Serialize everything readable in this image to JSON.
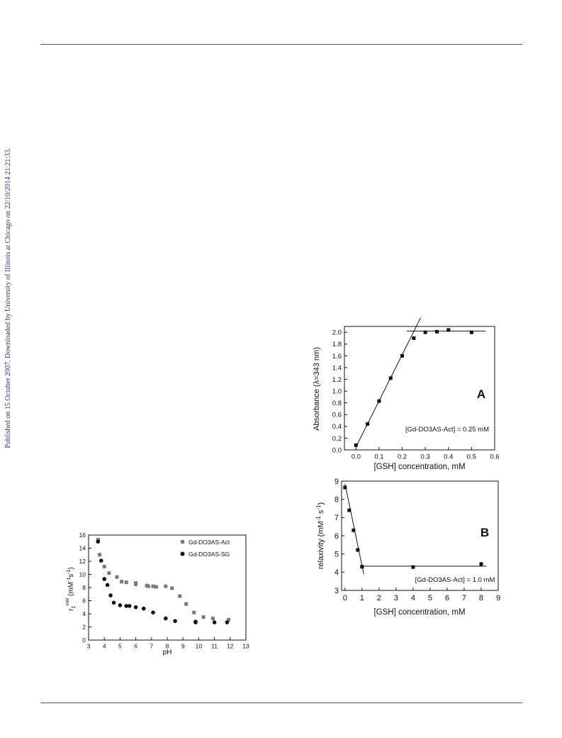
{
  "page": {
    "sidebar_text": "Published on 15 October 2007. Downloaded by University of Illinois at Chicago on 22/10/2014 21:21:33."
  },
  "chart_data": [
    {
      "type": "line",
      "panel_label": "A",
      "xlabel": "[GSH] concentration, mM",
      "ylabel_parts": [
        "Absorbance (",
        "λ",
        "=343 nm)"
      ],
      "annotation": "[Gd-DO3AS-Act] = 0.25 mM",
      "xlim": [
        -0.05,
        0.6
      ],
      "ylim": [
        0.0,
        2.1
      ],
      "xticks": [
        0.0,
        0.1,
        0.2,
        0.3,
        0.4,
        0.5,
        0.6
      ],
      "yticks": [
        0.0,
        0.2,
        0.4,
        0.6,
        0.8,
        1.0,
        1.2,
        1.4,
        1.6,
        1.8,
        2.0
      ],
      "xtick_labels": [
        "0.0",
        "0.1",
        "0.2",
        "0.3",
        "0.4",
        "0.5",
        "0.6"
      ],
      "ytick_labels": [
        "0.0",
        "0.2",
        "0.4",
        "0.6",
        "0.8",
        "1.0",
        "1.2",
        "1.4",
        "1.6",
        "1.8",
        "2.0"
      ],
      "grid": false,
      "points": {
        "x": [
          0.0,
          0.05,
          0.1,
          0.15,
          0.2,
          0.25,
          0.3,
          0.35,
          0.4,
          0.5
        ],
        "y": [
          0.08,
          0.44,
          0.83,
          1.22,
          1.6,
          1.9,
          2.0,
          2.01,
          2.04,
          2.0
        ]
      },
      "fit_lines": [
        {
          "x": [
            0.0,
            0.28
          ],
          "y": [
            0.05,
            2.25
          ]
        },
        {
          "x": [
            0.22,
            0.56
          ],
          "y": [
            2.02,
            2.02
          ]
        }
      ]
    },
    {
      "type": "line",
      "panel_label": "B",
      "xlabel": "[GSH] concentration, mM",
      "ylabel": "relaxivity (mM⁻¹ s⁻¹)",
      "ylabel_main": "relaxivity (mM",
      "ylabel_sup1": "-1",
      "ylabel_mid": " s",
      "ylabel_sup2": "-1",
      "ylabel_end": ")",
      "annotation": "[Gd-DO3AS-Act] = 1.0 mM",
      "xlim": [
        -0.2,
        9
      ],
      "ylim": [
        3,
        9
      ],
      "xticks": [
        0,
        1,
        2,
        3,
        4,
        5,
        6,
        7,
        8,
        9
      ],
      "yticks": [
        3,
        4,
        5,
        6,
        7,
        8,
        9
      ],
      "xtick_labels": [
        "0",
        "1",
        "2",
        "3",
        "4",
        "5",
        "6",
        "7",
        "8",
        "9"
      ],
      "ytick_labels": [
        "3",
        "4",
        "5",
        "6",
        "7",
        "8",
        "9"
      ],
      "grid": false,
      "points": {
        "x": [
          0.0,
          0.25,
          0.5,
          0.75,
          1.0,
          4.0,
          8.0
        ],
        "y": [
          8.65,
          7.4,
          6.3,
          5.22,
          4.3,
          4.28,
          4.45
        ]
      },
      "fit_lines": [
        {
          "x": [
            0.0,
            1.1
          ],
          "y": [
            8.85,
            3.9
          ]
        },
        {
          "x": [
            0.9,
            8.3
          ],
          "y": [
            4.33,
            4.33
          ]
        }
      ]
    },
    {
      "type": "scatter",
      "xlabel": "pH",
      "ylabel_main": "r",
      "ylabel_sub": "1",
      "ylabel_sup": "mM",
      "ylabel_unit": " (mM",
      "ylabel_unit_sup": "-1",
      "ylabel_unit_s": "s",
      "ylabel_unit_sup2": "-1",
      "ylabel_unit_end": ")",
      "xlim": [
        3,
        13
      ],
      "ylim": [
        0,
        16
      ],
      "xticks": [
        3,
        4,
        5,
        6,
        7,
        8,
        9,
        10,
        11,
        12,
        13
      ],
      "yticks": [
        0,
        2,
        4,
        6,
        8,
        10,
        12,
        14,
        16
      ],
      "xtick_labels": [
        "3",
        "4",
        "5",
        "6",
        "7",
        "8",
        "9",
        "10",
        "11",
        "12",
        "13"
      ],
      "ytick_labels": [
        "0",
        "2",
        "4",
        "6",
        "8",
        "10",
        "12",
        "14",
        "16"
      ],
      "grid": false,
      "legend_position": "top-right",
      "series": [
        {
          "name": "Gd-DO3AS-Act",
          "marker": "square",
          "color": "#7a7a7a",
          "x": [
            3.6,
            3.7,
            4.0,
            4.3,
            4.8,
            5.1,
            5.4,
            6.0,
            6.0,
            6.7,
            6.8,
            7.1,
            7.3,
            7.9,
            8.3,
            8.8,
            9.2,
            9.7,
            10.3,
            10.9,
            11.9
          ],
          "y": [
            15.3,
            13.0,
            11.2,
            10.2,
            9.6,
            8.9,
            8.8,
            8.7,
            8.5,
            8.3,
            8.2,
            8.2,
            8.1,
            8.2,
            7.9,
            6.7,
            5.5,
            4.2,
            3.5,
            3.3,
            3.1
          ]
        },
        {
          "name": "Gd-DO3AS-SG",
          "marker": "circle",
          "color": "#111111",
          "x": [
            3.6,
            3.8,
            4.0,
            4.2,
            4.4,
            4.6,
            5.0,
            5.4,
            5.6,
            6.0,
            6.5,
            7.1,
            7.9,
            8.5,
            9.8,
            9.8,
            11.0,
            11.8
          ],
          "y": [
            15.0,
            12.1,
            9.3,
            8.4,
            6.8,
            5.7,
            5.3,
            5.2,
            5.2,
            5.0,
            4.8,
            4.2,
            3.3,
            2.9,
            2.8,
            2.7,
            2.7,
            2.7
          ]
        }
      ]
    }
  ]
}
